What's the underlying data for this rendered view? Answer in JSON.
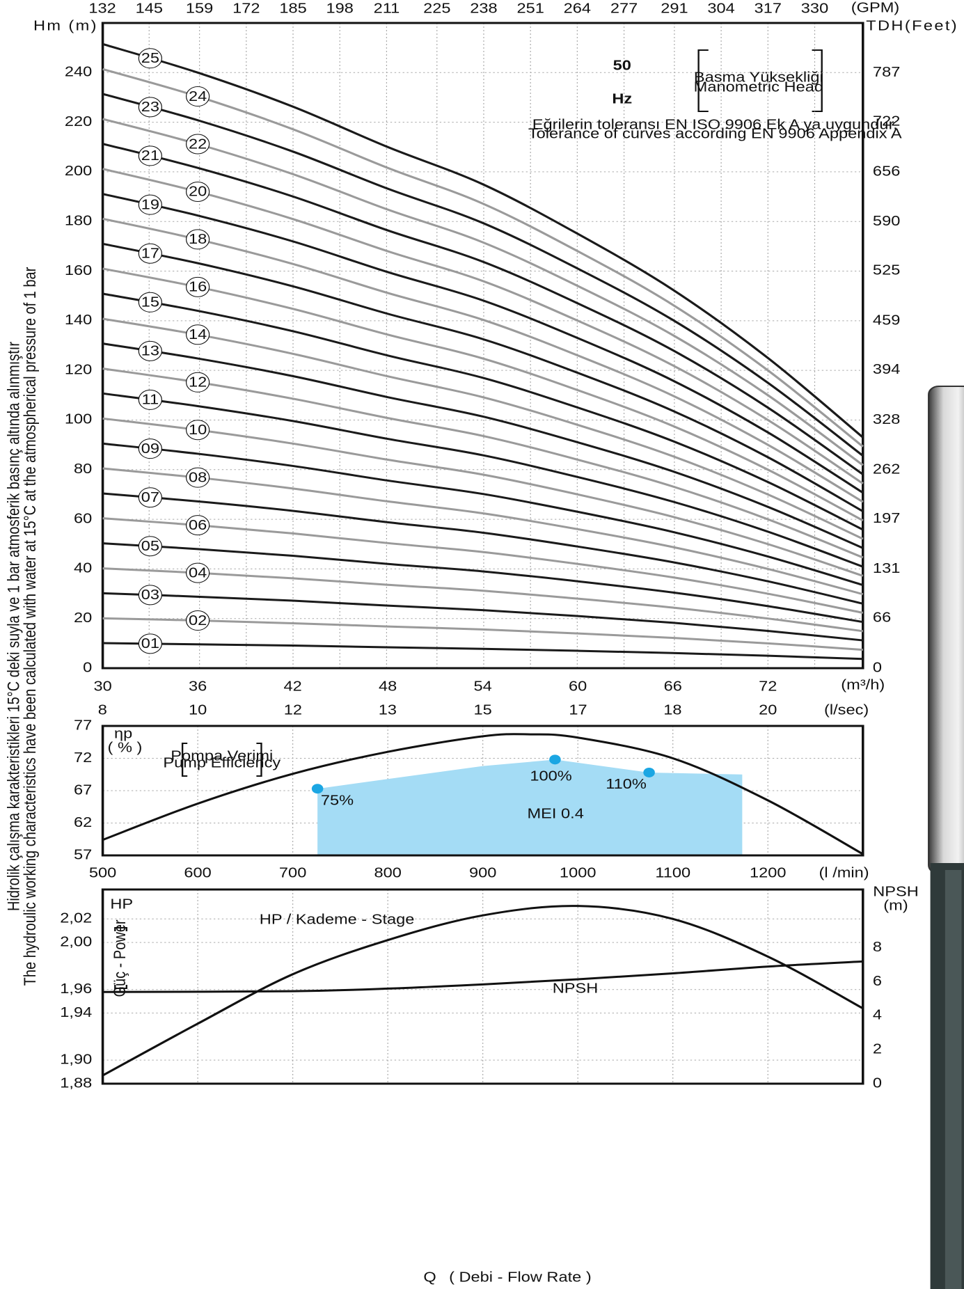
{
  "chart_data": [
    {
      "type": "line",
      "freq_value": "50",
      "freq_unit": "Hz",
      "head_label_tr": "Basma Yüksekliği",
      "head_label_en": "Manometric Head",
      "tolerance_tr": "Eğrilerin toleransı EN ISO 9906 Ek A ya uygundur.",
      "tolerance_en": "Tolerance of curves according EN 9906 Appendix A",
      "y_label": "Hm (m)",
      "y2_label": "TDH(Feet)",
      "x_label": "(m³/h)",
      "x2_label": "(GPM)",
      "x3_label": "(l/sec)",
      "x": [
        30,
        36,
        42,
        48,
        54,
        60,
        66,
        72,
        78
      ],
      "xlim": [
        30,
        78
      ],
      "xticks": [
        30,
        36,
        42,
        48,
        54,
        60,
        66,
        72
      ],
      "x2lim": [
        132.1,
        343.4
      ],
      "x2ticks": [
        132,
        145,
        159,
        172,
        185,
        198,
        211,
        225,
        238,
        251,
        264,
        277,
        291,
        304,
        317,
        330
      ],
      "x3lim": [
        8.333,
        21.667
      ],
      "x3ticks": [
        {
          "value": 8.33,
          "label": "8"
        },
        10,
        {
          "value": 11.67,
          "label": "12"
        },
        {
          "value": 13.33,
          "label": "13"
        },
        15,
        {
          "value": 16.67,
          "label": "17"
        },
        {
          "value": 18.33,
          "label": "18"
        },
        20
      ],
      "ylim": [
        0,
        260
      ],
      "yticks": [
        0,
        20,
        40,
        60,
        80,
        100,
        120,
        140,
        160,
        180,
        200,
        220,
        240
      ],
      "y2lim": [
        0,
        853
      ],
      "y2ticks": [
        0,
        66,
        131,
        197,
        262,
        328,
        394,
        459,
        525,
        590,
        656,
        722,
        787
      ],
      "grid": true,
      "series": [
        {
          "name": "01",
          "color": "#1a1a1a",
          "values": [
            10.1,
            9.6,
            9.1,
            8.4,
            7.8,
            7.0,
            6.1,
            5.0,
            3.7
          ]
        },
        {
          "name": "02",
          "color": "#9a9a9a",
          "values": [
            20.1,
            19.2,
            18.1,
            16.8,
            15.6,
            14.0,
            12.2,
            10.0,
            7.4
          ]
        },
        {
          "name": "03",
          "color": "#1a1a1a",
          "values": [
            30.2,
            28.8,
            27.2,
            25.2,
            23.4,
            21.0,
            18.3,
            15.0,
            11.2
          ]
        },
        {
          "name": "04",
          "color": "#9a9a9a",
          "values": [
            40.2,
            38.4,
            36.2,
            33.6,
            31.2,
            28.0,
            24.4,
            20.0,
            14.9
          ]
        },
        {
          "name": "05",
          "color": "#1a1a1a",
          "values": [
            50.3,
            48.0,
            45.3,
            42.0,
            39.0,
            35.0,
            30.5,
            25.0,
            18.6
          ]
        },
        {
          "name": "06",
          "color": "#9a9a9a",
          "values": [
            60.4,
            57.6,
            54.3,
            50.4,
            46.8,
            42.0,
            36.6,
            30.0,
            22.3
          ]
        },
        {
          "name": "07",
          "color": "#1a1a1a",
          "values": [
            70.4,
            67.2,
            63.4,
            58.8,
            54.6,
            49.0,
            42.7,
            35.0,
            26.0
          ]
        },
        {
          "name": "08",
          "color": "#9a9a9a",
          "values": [
            80.5,
            76.8,
            72.4,
            67.2,
            62.4,
            56.0,
            48.8,
            40.0,
            29.8
          ]
        },
        {
          "name": "09",
          "color": "#1a1a1a",
          "values": [
            90.5,
            86.4,
            81.5,
            75.6,
            70.2,
            63.0,
            54.9,
            45.0,
            33.5
          ]
        },
        {
          "name": "10",
          "color": "#9a9a9a",
          "values": [
            100.6,
            96.0,
            90.5,
            84.0,
            78.0,
            70.0,
            61.0,
            50.0,
            37.2
          ]
        },
        {
          "name": "11",
          "color": "#1a1a1a",
          "values": [
            110.7,
            105.6,
            99.6,
            92.4,
            85.8,
            77.0,
            67.1,
            55.0,
            40.9
          ]
        },
        {
          "name": "12",
          "color": "#9a9a9a",
          "values": [
            120.7,
            115.2,
            108.6,
            100.8,
            93.6,
            84.0,
            73.2,
            60.0,
            44.6
          ]
        },
        {
          "name": "13",
          "color": "#1a1a1a",
          "values": [
            130.8,
            124.8,
            117.7,
            109.2,
            101.4,
            91.0,
            79.3,
            65.0,
            48.4
          ]
        },
        {
          "name": "14",
          "color": "#9a9a9a",
          "values": [
            140.8,
            134.4,
            126.7,
            117.6,
            109.2,
            98.0,
            85.4,
            70.0,
            52.1
          ]
        },
        {
          "name": "15",
          "color": "#1a1a1a",
          "values": [
            150.9,
            144.0,
            135.8,
            126.0,
            117.0,
            105.0,
            91.5,
            75.0,
            55.8
          ]
        },
        {
          "name": "16",
          "color": "#9a9a9a",
          "values": [
            161.0,
            153.6,
            144.8,
            134.4,
            124.8,
            112.0,
            97.6,
            80.0,
            59.5
          ]
        },
        {
          "name": "17",
          "color": "#1a1a1a",
          "values": [
            171.0,
            163.2,
            153.9,
            142.8,
            132.6,
            119.0,
            103.7,
            85.0,
            63.2
          ]
        },
        {
          "name": "18",
          "color": "#9a9a9a",
          "values": [
            181.1,
            172.8,
            162.9,
            151.2,
            140.4,
            126.0,
            109.8,
            90.0,
            67.0
          ]
        },
        {
          "name": "19",
          "color": "#1a1a1a",
          "values": [
            191.1,
            182.4,
            172.0,
            159.6,
            148.2,
            133.0,
            115.9,
            95.0,
            70.7
          ]
        },
        {
          "name": "20",
          "color": "#9a9a9a",
          "values": [
            201.2,
            192.0,
            181.0,
            168.0,
            156.0,
            140.0,
            122.0,
            100.0,
            74.4
          ]
        },
        {
          "name": "21",
          "color": "#1a1a1a",
          "values": [
            211.3,
            201.6,
            190.1,
            176.4,
            163.8,
            147.0,
            128.1,
            105.0,
            78.1
          ]
        },
        {
          "name": "22",
          "color": "#9a9a9a",
          "values": [
            221.3,
            211.2,
            199.1,
            184.8,
            171.6,
            154.0,
            134.2,
            110.0,
            81.8
          ]
        },
        {
          "name": "23",
          "color": "#1a1a1a",
          "values": [
            231.4,
            220.8,
            208.2,
            193.2,
            179.4,
            161.0,
            140.3,
            115.0,
            85.6
          ]
        },
        {
          "name": "24",
          "color": "#9a9a9a",
          "values": [
            241.4,
            230.4,
            217.2,
            201.6,
            187.2,
            168.0,
            146.4,
            120.0,
            89.3
          ]
        },
        {
          "name": "25",
          "color": "#1a1a1a",
          "values": [
            251.5,
            240.0,
            226.3,
            210.0,
            195.0,
            175.0,
            152.5,
            125.0,
            93.0
          ]
        }
      ]
    },
    {
      "type": "line",
      "y_label": "ηp",
      "y_unit": "( % )",
      "legend_tr": "Pompa Verimi",
      "legend_en": "Pump Efficiency",
      "x_label": "(l /min)",
      "x": [
        500,
        600,
        700,
        800,
        900,
        950,
        1000,
        1100,
        1200,
        1300
      ],
      "values": [
        59.4,
        65.0,
        69.6,
        73.0,
        75.4,
        75.7,
        75.2,
        72.0,
        65.5,
        57.2
      ],
      "color": "#111111",
      "xlim": [
        500,
        1300
      ],
      "xticks": [
        500,
        600,
        700,
        800,
        900,
        1000,
        1100,
        1200
      ],
      "ylim": [
        57,
        77
      ],
      "yticks": [
        57,
        62,
        67,
        72,
        77
      ],
      "grid": true,
      "area": {
        "label": "MEI 0.4",
        "color": "#a4dcf5",
        "x": [
          726,
          800,
          900,
          976,
          1075,
          1173
        ],
        "values": [
          67.3,
          68.8,
          70.8,
          71.8,
          69.8,
          69.5
        ]
      },
      "points": {
        "color": "#1ba6e3",
        "x": [
          726,
          976,
          1075
        ],
        "values": [
          67.3,
          71.8,
          69.8
        ],
        "labels": [
          "75%",
          "100%",
          "110%"
        ]
      }
    },
    {
      "type": "line",
      "y_label": "HP",
      "y_side_label": "Güç - Power",
      "y2_label": "NPSH",
      "y2_unit": "(m)",
      "x_label": "Q",
      "x_sublabel": "( Debi - Flow Rate )",
      "xlim": [
        500,
        1300
      ],
      "ylim": [
        1.88,
        2.045
      ],
      "yticks": [
        {
          "value": 1.88,
          "label": "1,88"
        },
        {
          "value": 1.9,
          "label": "1,90"
        },
        {
          "value": 1.94,
          "label": "1,94"
        },
        {
          "value": 1.96,
          "label": "1,96"
        },
        {
          "value": 2.0,
          "label": "2,00"
        },
        {
          "value": 2.02,
          "label": "2,02"
        }
      ],
      "y2lim": [
        0,
        11.44
      ],
      "y2ticks": [
        0,
        2,
        4,
        6,
        8
      ],
      "grid": true,
      "series": [
        {
          "name": "HP / Kademe - Stage",
          "color": "#111111",
          "x": [
            500,
            600,
            700,
            800,
            900,
            1000,
            1100,
            1200,
            1300
          ],
          "values": [
            1.887,
            1.931,
            1.973,
            2.002,
            2.023,
            2.031,
            2.02,
            1.988,
            1.944
          ]
        },
        {
          "name": "NPSH",
          "color": "#111111",
          "axis": "y2",
          "x": [
            500,
            700,
            800,
            900,
            1000,
            1100,
            1200,
            1300
          ],
          "values": [
            5.4,
            5.45,
            5.6,
            5.85,
            6.15,
            6.5,
            6.9,
            7.2
          ]
        }
      ]
    }
  ],
  "side_notes": [
    "Hidrolik çalışma karakteristikleri 15°C deki suyla ve 1 bar atmosferik basınç altında alınmıştır",
    "The hydroulic working characteristics have been calculated with water at 15°C at the atmospherical pressure of 1 bar"
  ]
}
